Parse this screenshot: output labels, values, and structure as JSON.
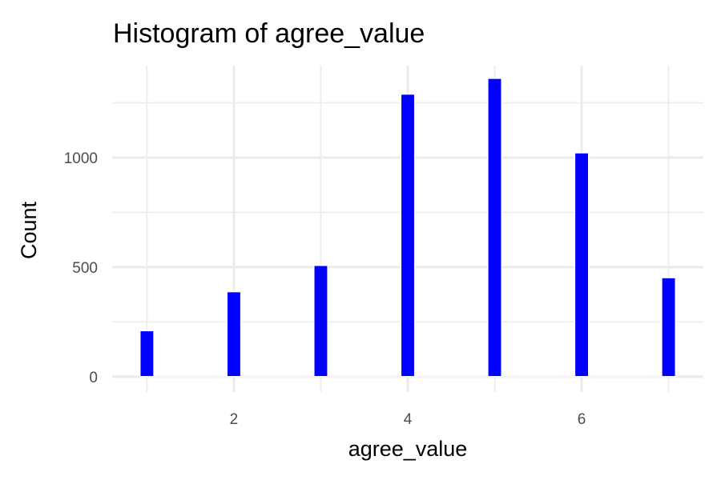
{
  "chart_data": {
    "type": "bar",
    "title": "Histogram of agree_value",
    "xlabel": "agree_value",
    "ylabel": "Count",
    "x": [
      1,
      2,
      3,
      4,
      5,
      6,
      7
    ],
    "values": [
      210,
      388,
      508,
      1290,
      1362,
      1022,
      452
    ],
    "xlim": [
      0.6,
      7.4
    ],
    "ylim": [
      -70,
      1420
    ],
    "x_ticks": [
      2,
      4,
      6
    ],
    "x_tick_labels": [
      "2",
      "4",
      "6"
    ],
    "x_minor_ticks": [
      1,
      3,
      5,
      7
    ],
    "y_ticks": [
      0,
      500,
      1000
    ],
    "y_tick_labels": [
      "0",
      "500",
      "1000"
    ],
    "y_minor_ticks": [
      250,
      750,
      1250
    ],
    "bar_width": 0.16,
    "grid": true,
    "legend": "none",
    "colors": {
      "bar_fill": "#0000ff",
      "bar_outline": "#ffffff",
      "grid": "#ebebeb",
      "background": "#ffffff"
    }
  }
}
